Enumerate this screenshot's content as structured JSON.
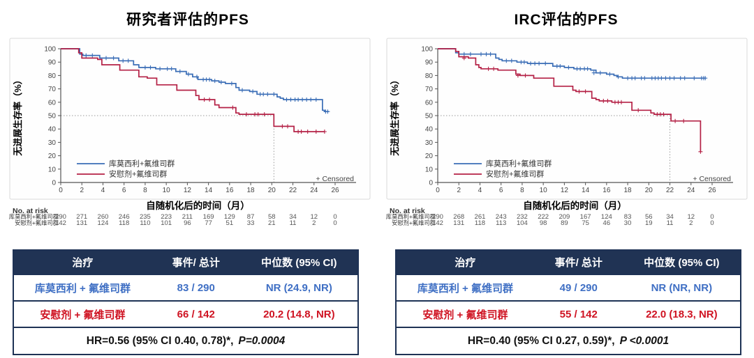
{
  "colors": {
    "treatment_blue": "#3a6db6",
    "placebo_red": "#b42045",
    "table_text_blue": "#3f6fc4",
    "table_text_red": "#cf1322",
    "header_navy": "#203354"
  },
  "chart_data": [
    {
      "type": "line",
      "subtype": "kaplan_meier_step",
      "title": "研究者评估的PFS",
      "ylabel": "无进展生存率（%）",
      "xlabel": "自随机化后的时间（月）",
      "censored_label": "+ Censored",
      "no_at_risk_label": "No. at risk",
      "xlim": [
        0,
        26
      ],
      "ylim": [
        0,
        100
      ],
      "xtick_step": 2,
      "ytick_step": 10,
      "median_ref": {
        "y": 50,
        "x": 20.2
      },
      "series": [
        {
          "name": "库莫西利+氟维司群",
          "color": "#3a6db6",
          "steps": [
            [
              0,
              100
            ],
            [
              1.8,
              96
            ],
            [
              2.1,
              95
            ],
            [
              3.7,
              93
            ],
            [
              5.5,
              91
            ],
            [
              6.9,
              88
            ],
            [
              7.4,
              86
            ],
            [
              9,
              85
            ],
            [
              10.9,
              83
            ],
            [
              11.9,
              81
            ],
            [
              12.5,
              79
            ],
            [
              13,
              77
            ],
            [
              14.3,
              76
            ],
            [
              15,
              75
            ],
            [
              15.6,
              74
            ],
            [
              16.6,
              71
            ],
            [
              16.9,
              69
            ],
            [
              17.9,
              68
            ],
            [
              18.6,
              66
            ],
            [
              20.5,
              64
            ],
            [
              20.8,
              63
            ],
            [
              21.1,
              62
            ],
            [
              24.8,
              54
            ],
            [
              25,
              53
            ],
            [
              25.4,
              53
            ]
          ],
          "censors": [
            [
              2.4,
              95
            ],
            [
              3,
              95
            ],
            [
              4.3,
              93
            ],
            [
              5,
              93
            ],
            [
              5.9,
              91
            ],
            [
              6.4,
              91
            ],
            [
              8,
              86
            ],
            [
              8.5,
              86
            ],
            [
              9.4,
              85
            ],
            [
              10.1,
              85
            ],
            [
              10.5,
              85
            ],
            [
              11.3,
              83
            ],
            [
              12.1,
              81
            ],
            [
              12.9,
              79
            ],
            [
              13.5,
              77
            ],
            [
              13.8,
              77
            ],
            [
              14.1,
              77
            ],
            [
              14.6,
              76
            ],
            [
              15.2,
              75
            ],
            [
              16.2,
              74
            ],
            [
              17.2,
              69
            ],
            [
              18.2,
              68
            ],
            [
              18.9,
              66
            ],
            [
              19.2,
              66
            ],
            [
              19.6,
              66
            ],
            [
              20.2,
              66
            ],
            [
              21.4,
              62
            ],
            [
              21.8,
              62
            ],
            [
              22.2,
              62
            ],
            [
              22.5,
              62
            ],
            [
              22.9,
              62
            ],
            [
              23.3,
              62
            ],
            [
              23.7,
              62
            ],
            [
              24.2,
              62
            ],
            [
              25.1,
              53
            ],
            [
              25.3,
              53
            ]
          ]
        },
        {
          "name": "安慰剂+氟维司群",
          "color": "#b42045",
          "steps": [
            [
              0,
              100
            ],
            [
              1.7,
              97
            ],
            [
              2,
              93
            ],
            [
              3.5,
              92
            ],
            [
              3.9,
              88
            ],
            [
              5.6,
              84
            ],
            [
              7.4,
              79
            ],
            [
              8.2,
              78
            ],
            [
              9.1,
              73
            ],
            [
              11,
              69
            ],
            [
              12.8,
              65
            ],
            [
              13.1,
              62
            ],
            [
              14.6,
              58
            ],
            [
              15,
              56
            ],
            [
              16.6,
              52
            ],
            [
              16.9,
              51
            ],
            [
              20.2,
              42
            ],
            [
              22.1,
              38
            ],
            [
              25,
              38
            ]
          ],
          "censors": [
            [
              13.6,
              62
            ],
            [
              14.1,
              62
            ],
            [
              16.3,
              56
            ],
            [
              17.6,
              51
            ],
            [
              18.4,
              51
            ],
            [
              18.7,
              51
            ],
            [
              19.3,
              51
            ],
            [
              21,
              42
            ],
            [
              21.5,
              42
            ],
            [
              22.5,
              38
            ],
            [
              22.8,
              38
            ],
            [
              23.4,
              38
            ],
            [
              24.2,
              38
            ],
            [
              25,
              38
            ]
          ]
        }
      ],
      "risk_table": {
        "times": [
          0,
          2,
          4,
          6,
          8,
          10,
          12,
          14,
          16,
          18,
          20,
          22,
          24,
          26
        ],
        "rows": [
          {
            "name": "库莫西利+氟维司群",
            "counts": [
              290,
              271,
              260,
              246,
              235,
              223,
              211,
              169,
              129,
              87,
              58,
              34,
              12,
              0
            ]
          },
          {
            "name": "安慰剂+氟维司群",
            "counts": [
              142,
              131,
              124,
              118,
              110,
              101,
              96,
              77,
              51,
              33,
              21,
              11,
              2,
              0
            ]
          }
        ]
      }
    },
    {
      "type": "line",
      "subtype": "kaplan_meier_step",
      "title": "IRC评估的PFS",
      "ylabel": "无进展生存率（%）",
      "xlabel": "自随机化后的时间（月）",
      "censored_label": "+ Censored",
      "no_at_risk_label": "No. at risk",
      "xlim": [
        0,
        26
      ],
      "ylim": [
        0,
        100
      ],
      "xtick_step": 2,
      "ytick_step": 10,
      "median_ref": {
        "y": 50,
        "x": 22.0
      },
      "series": [
        {
          "name": "库莫西利+氟维司群",
          "color": "#3a6db6",
          "steps": [
            [
              0,
              100
            ],
            [
              1.7,
              97
            ],
            [
              2,
              96
            ],
            [
              5.5,
              93
            ],
            [
              5.8,
              92
            ],
            [
              6.1,
              91
            ],
            [
              7.5,
              90
            ],
            [
              8.5,
              89
            ],
            [
              10.9,
              87
            ],
            [
              12,
              86
            ],
            [
              12.9,
              85
            ],
            [
              14.5,
              84
            ],
            [
              15,
              82
            ],
            [
              16,
              81
            ],
            [
              16.7,
              80
            ],
            [
              17,
              79
            ],
            [
              17.5,
              78
            ],
            [
              25.4,
              78
            ]
          ],
          "censors": [
            [
              2.5,
              96
            ],
            [
              3.1,
              96
            ],
            [
              4.1,
              96
            ],
            [
              4.6,
              96
            ],
            [
              5,
              96
            ],
            [
              6.5,
              91
            ],
            [
              7,
              91
            ],
            [
              7.9,
              90
            ],
            [
              8.2,
              90
            ],
            [
              8.8,
              89
            ],
            [
              9.2,
              89
            ],
            [
              9.6,
              89
            ],
            [
              10.2,
              89
            ],
            [
              11.3,
              87
            ],
            [
              11.6,
              87
            ],
            [
              12.4,
              86
            ],
            [
              13.2,
              85
            ],
            [
              13.5,
              85
            ],
            [
              13.9,
              85
            ],
            [
              14.2,
              85
            ],
            [
              14.8,
              82
            ],
            [
              15.4,
              82
            ],
            [
              16.3,
              81
            ],
            [
              17.1,
              79
            ],
            [
              18,
              78
            ],
            [
              18.4,
              78
            ],
            [
              18.7,
              78
            ],
            [
              19.3,
              78
            ],
            [
              19.6,
              78
            ],
            [
              20.3,
              78
            ],
            [
              20.6,
              78
            ],
            [
              20.9,
              78
            ],
            [
              21.2,
              78
            ],
            [
              21.6,
              78
            ],
            [
              22,
              78
            ],
            [
              22.4,
              78
            ],
            [
              23,
              78
            ],
            [
              23.4,
              78
            ],
            [
              24.3,
              78
            ],
            [
              25,
              78
            ],
            [
              25.2,
              78
            ],
            [
              25.35,
              78
            ]
          ]
        },
        {
          "name": "安慰剂+氟维司群",
          "color": "#b42045",
          "steps": [
            [
              0,
              100
            ],
            [
              1.7,
              98
            ],
            [
              2,
              94
            ],
            [
              2.9,
              93
            ],
            [
              3.6,
              88
            ],
            [
              3.9,
              86
            ],
            [
              4.1,
              85
            ],
            [
              5.7,
              84
            ],
            [
              7.4,
              81
            ],
            [
              7.8,
              80
            ],
            [
              9.1,
              78
            ],
            [
              11,
              72
            ],
            [
              12.8,
              69
            ],
            [
              13.1,
              68
            ],
            [
              14.6,
              63
            ],
            [
              15,
              62
            ],
            [
              15.3,
              61
            ],
            [
              16.5,
              60
            ],
            [
              18.4,
              54
            ],
            [
              20.2,
              52
            ],
            [
              20.5,
              51
            ],
            [
              22.1,
              46
            ],
            [
              24.9,
              23
            ]
          ],
          "censors": [
            [
              2.5,
              93
            ],
            [
              4.8,
              85
            ],
            [
              5.3,
              85
            ],
            [
              7.6,
              80
            ],
            [
              8.3,
              80
            ],
            [
              13.4,
              68
            ],
            [
              14,
              68
            ],
            [
              15.7,
              61
            ],
            [
              16.1,
              61
            ],
            [
              16.8,
              60
            ],
            [
              17.1,
              60
            ],
            [
              17.4,
              60
            ],
            [
              19,
              54
            ],
            [
              20.8,
              51
            ],
            [
              21.1,
              51
            ],
            [
              21.4,
              51
            ],
            [
              22.5,
              46
            ],
            [
              23.3,
              46
            ],
            [
              24.9,
              23
            ]
          ]
        }
      ],
      "risk_table": {
        "times": [
          0,
          2,
          4,
          6,
          8,
          10,
          12,
          14,
          16,
          18,
          20,
          22,
          24,
          26
        ],
        "rows": [
          {
            "name": "库莫西利+氟维司群",
            "counts": [
              290,
              268,
              261,
              243,
              232,
              222,
              209,
              167,
              124,
              83,
              56,
              34,
              12,
              0
            ]
          },
          {
            "name": "安慰剂+氟维司群",
            "counts": [
              142,
              131,
              118,
              113,
              104,
              98,
              89,
              75,
              46,
              30,
              19,
              11,
              2,
              0
            ]
          }
        ]
      }
    }
  ],
  "summary_tables": [
    {
      "headers": [
        "治疗",
        "事件/ 总计",
        "中位数 (95% CI)"
      ],
      "rows": [
        {
          "treatment": "库莫西利 + 氟维司群",
          "events": "83 / 290",
          "median": "NR (24.9, NR)",
          "color": "#3f6fc4"
        },
        {
          "treatment": "安慰剂 + 氟维司群",
          "events": "66 / 142",
          "median": "20.2 (14.8, NR)",
          "color": "#cf1322"
        }
      ],
      "footer_hr": "HR=0.56 (95% CI 0.40, 0.78)*,",
      "footer_p": "P=0.0004"
    },
    {
      "headers": [
        "治疗",
        "事件/ 总计",
        "中位数 (95% CI)"
      ],
      "rows": [
        {
          "treatment": "库莫西利 + 氟维司群",
          "events": "49 / 290",
          "median": "NR (NR, NR)",
          "color": "#3f6fc4"
        },
        {
          "treatment": "安慰剂 + 氟维司群",
          "events": "55 / 142",
          "median": "22.0 (18.3, NR)",
          "color": "#cf1322"
        }
      ],
      "footer_hr": "HR=0.40 (95% CI 0.27, 0.59)*,",
      "footer_p": "P <0.0001"
    }
  ]
}
